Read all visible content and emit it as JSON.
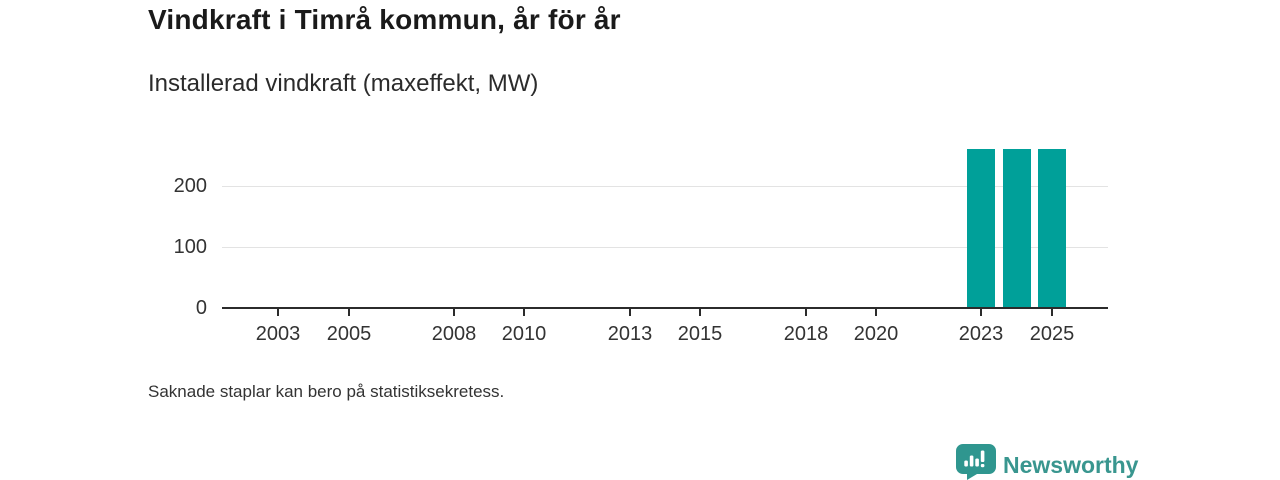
{
  "page": {
    "background": "#ffffff"
  },
  "chart_data": {
    "type": "bar",
    "title": "Vindkraft i Timrå kommun, år för år",
    "subtitle": "Installerad vindkraft (maxeffekt, MW)",
    "footnote": "Saknade staplar kan bero på statistiksekretess.",
    "x": [
      2002,
      2003,
      2004,
      2005,
      2006,
      2007,
      2008,
      2009,
      2010,
      2011,
      2012,
      2013,
      2014,
      2015,
      2016,
      2017,
      2018,
      2019,
      2020,
      2021,
      2022,
      2023,
      2024,
      2025
    ],
    "values": [
      null,
      null,
      null,
      null,
      null,
      null,
      null,
      null,
      null,
      null,
      null,
      null,
      null,
      null,
      null,
      null,
      null,
      null,
      null,
      null,
      null,
      261,
      261,
      261
    ],
    "x_tick_labels": [
      "2003",
      "2005",
      "2008",
      "2010",
      "2013",
      "2015",
      "2018",
      "2020",
      "2023",
      "2025"
    ],
    "x_ticks": [
      2003,
      2005,
      2008,
      2010,
      2013,
      2015,
      2018,
      2020,
      2023,
      2025
    ],
    "y_ticks": [
      0,
      100,
      200
    ],
    "y_tick_labels": [
      "0",
      "100",
      "200"
    ],
    "xlim": [
      2001.4,
      2026.6
    ],
    "ylim": [
      0,
      270.5
    ],
    "grid": "horizontal-only",
    "legend": "none",
    "unit": "MW"
  },
  "branding": {
    "wordmark": "Newsworthy",
    "icon": "newsworthy-speech-bubble-bar-chart-icon"
  },
  "colors": {
    "bar": "#00a099",
    "grid": "#e3e3e3",
    "axis": "#2b2b2b",
    "title_text": "#1a1a1a",
    "body_text": "#333333",
    "brand_teal": "#39968f"
  }
}
